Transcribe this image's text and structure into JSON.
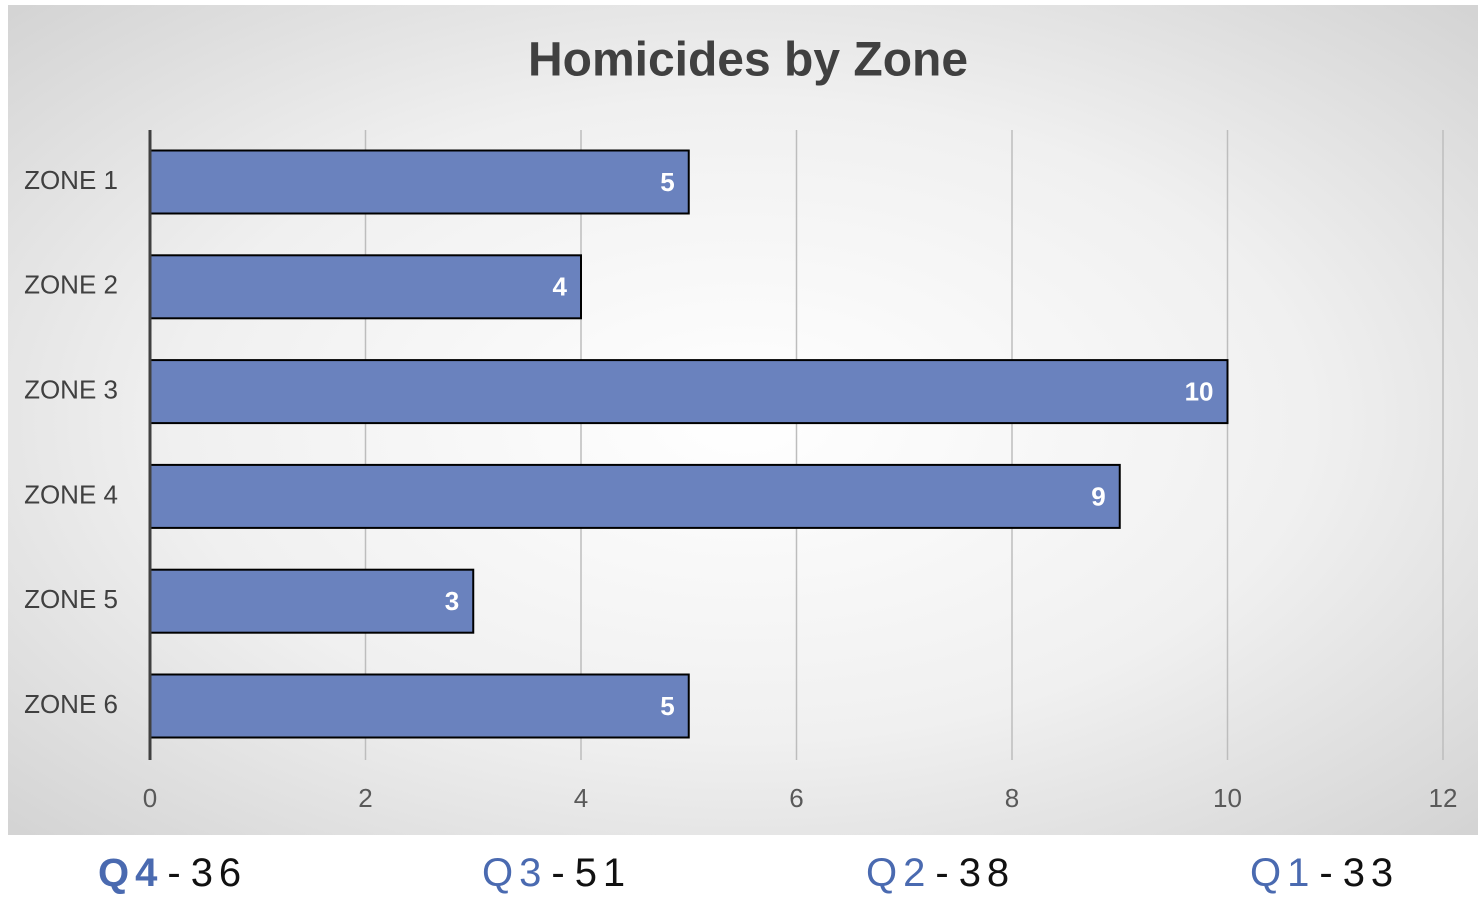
{
  "chart_data": {
    "type": "bar",
    "orientation": "horizontal",
    "title": "Homicides by Zone",
    "categories": [
      "ZONE 1",
      "ZONE 2",
      "ZONE 3",
      "ZONE 4",
      "ZONE 5",
      "ZONE 6"
    ],
    "values": [
      5,
      4,
      10,
      9,
      3,
      5
    ],
    "color": "#6a82be",
    "xlim": [
      0,
      12
    ],
    "xticks": [
      0,
      2,
      4,
      6,
      8,
      10,
      12
    ],
    "grid": true
  },
  "footer": [
    {
      "quarter": "Q4",
      "separator": "-",
      "total": 36
    },
    {
      "quarter": "Q3",
      "separator": "-",
      "total": 51
    },
    {
      "quarter": "Q2",
      "separator": "-",
      "total": 38
    },
    {
      "quarter": "Q1",
      "separator": "-",
      "total": 33
    }
  ]
}
